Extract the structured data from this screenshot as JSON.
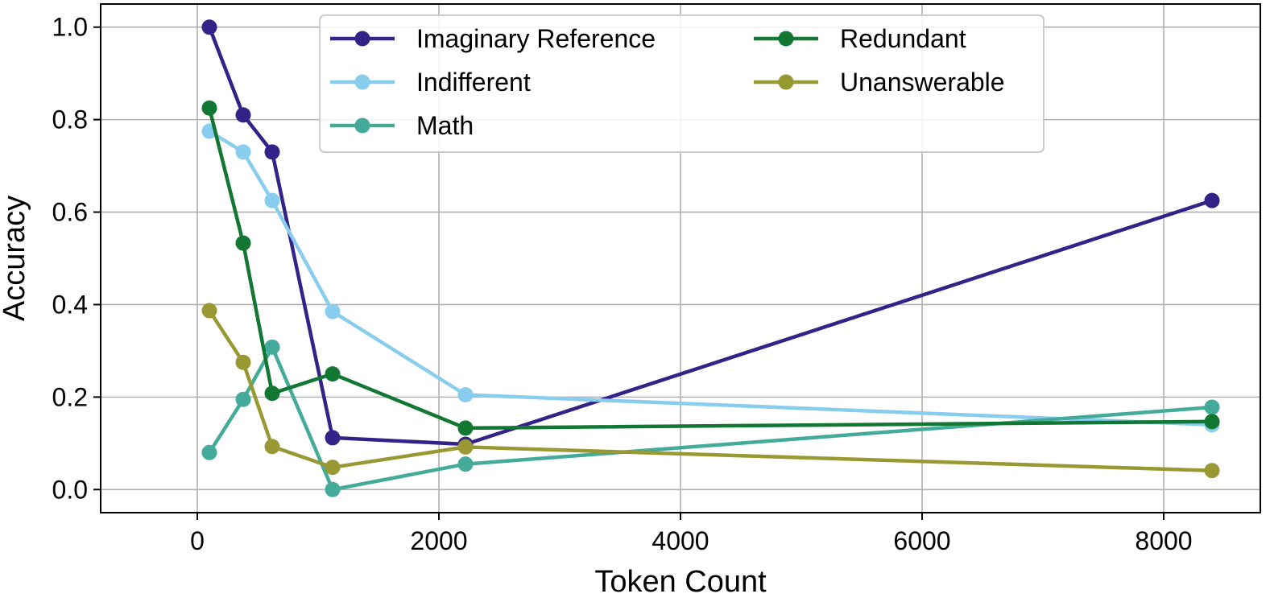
{
  "chart_data": {
    "type": "line",
    "title": "",
    "xlabel": "Token Count",
    "ylabel": "Accuracy",
    "xlim": [
      -800,
      8800
    ],
    "ylim": [
      -0.05,
      1.05
    ],
    "xticks": [
      0,
      2000,
      4000,
      6000,
      8000
    ],
    "xtick_labels": [
      "0",
      "2000",
      "4000",
      "6000",
      "8000"
    ],
    "yticks": [
      0.0,
      0.2,
      0.4,
      0.6,
      0.8,
      1.0
    ],
    "ytick_labels": [
      "0.0",
      "0.2",
      "0.4",
      "0.6",
      "0.8",
      "1.0"
    ],
    "grid": true,
    "legend_position": "top-center",
    "series": [
      {
        "name": "Imaginary Reference",
        "color": "#332288",
        "x": [
          100,
          380,
          620,
          1120,
          2220,
          8400
        ],
        "y": [
          1.0,
          0.81,
          0.73,
          0.112,
          0.098,
          0.625
        ]
      },
      {
        "name": "Indifferent",
        "color": "#88CCEE",
        "x": [
          100,
          380,
          620,
          1120,
          2220,
          8400
        ],
        "y": [
          0.775,
          0.73,
          0.625,
          0.385,
          0.205,
          0.14
        ]
      },
      {
        "name": "Math",
        "color": "#44AA99",
        "x": [
          100,
          380,
          620,
          1120,
          2220,
          8400
        ],
        "y": [
          0.08,
          0.195,
          0.308,
          0.0,
          0.055,
          0.178
        ]
      },
      {
        "name": "Redundant",
        "color": "#117733",
        "x": [
          100,
          380,
          620,
          1120,
          2220,
          8400
        ],
        "y": [
          0.825,
          0.533,
          0.208,
          0.25,
          0.133,
          0.147
        ]
      },
      {
        "name": "Unanswerable",
        "color": "#999933",
        "x": [
          100,
          380,
          620,
          1120,
          2220,
          8400
        ],
        "y": [
          0.387,
          0.275,
          0.093,
          0.048,
          0.092,
          0.041
        ]
      }
    ]
  }
}
